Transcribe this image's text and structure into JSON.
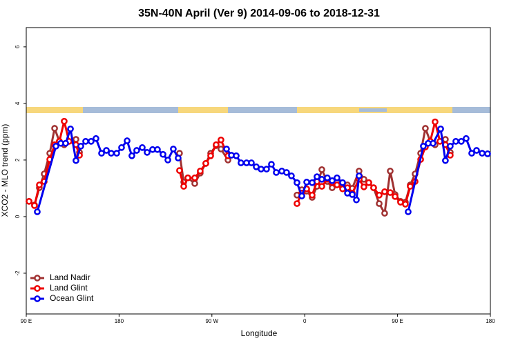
{
  "chart_data": {
    "type": "line",
    "title": "35N-40N April (Ver 9)   2014-09-06 to 2018-12-31",
    "x_label": "Longitude",
    "y_label": "XCO2 - MLO trend (ppm)",
    "xlim": [
      90,
      540
    ],
    "ylim": [
      -3.44,
      6.68
    ],
    "xticks": [
      {
        "value": 90,
        "label": "90 E"
      },
      180,
      {
        "value": 270,
        "label": "90 W"
      },
      {
        "value": 360,
        "label": "0"
      },
      {
        "value": 450,
        "label": "90 E"
      },
      {
        "value": 540,
        "label": "180"
      }
    ],
    "yticks": [
      -2,
      0,
      2,
      4,
      6
    ],
    "legend": "bottomleft",
    "series": [
      {
        "name": "Land Nadir",
        "color": "#a03232",
        "x": [
          92.7,
          98,
          102.7,
          107.4,
          112.8,
          117.5,
          122.1,
          126.8,
          138.2,
          141.6,
          null,
          238.6,
          242.7,
          246.7,
          253.4,
          258.7,
          264.1,
          268.8,
          274.1,
          278.8,
          285.6,
          null,
          352.5,
          357.2,
          361.9,
          367.2,
          371.9,
          376.6,
          381.9,
          386.6,
          391.3,
          396.7,
          401.4,
          406.1,
          412.7,
          417.4,
          422.1,
          426.8,
          432.2,
          437.5,
          442.9,
          447.6,
          452.9,
          457.6,
          462.3,
          467,
          472.4,
          477,
          481.7,
          486.4,
          496.4,
          501.1
        ],
        "values": [
          0.54,
          0.41,
          1.02,
          1.51,
          2.24,
          3.12,
          2.66,
          2.54,
          2.73,
          2.27,
          null,
          2.24,
          1.22,
          1.37,
          1.17,
          1.54,
          1.88,
          2.24,
          2.51,
          2.39,
          2.0,
          null,
          0.76,
          0.95,
          0.9,
          0.68,
          1.07,
          1.66,
          1.24,
          1.02,
          1.27,
          1.07,
          1.12,
          1.0,
          1.61,
          1.32,
          1.2,
          1.02,
          0.46,
          0.12,
          1.61,
          0.78,
          0.54,
          0.51,
          1.12,
          1.51,
          2.24,
          3.12,
          2.66,
          2.54,
          2.73,
          2.27
        ]
      },
      {
        "name": "Land Glint",
        "color": "#ee0000",
        "x": [
          92.7,
          98,
          102.7,
          107.4,
          112.8,
          117.5,
          122.1,
          126.8,
          131.5,
          138.2,
          141.6,
          null,
          238.6,
          242.7,
          246.7,
          253.4,
          258.7,
          264.1,
          268.8,
          274.1,
          278.8,
          285.6,
          null,
          352.5,
          357.2,
          361.9,
          367.2,
          371.9,
          376.6,
          381.9,
          386.6,
          391.3,
          396.7,
          401.4,
          406.1,
          412.7,
          417.4,
          422.1,
          426.8,
          432.2,
          437.5,
          442.9,
          447.6,
          452.9,
          457.6,
          462.3,
          467,
          472.4,
          477,
          481.7,
          486.4,
          491.1,
          496.4,
          501.1
        ],
        "values": [
          0.54,
          0.39,
          1.12,
          1.24,
          2.02,
          2.54,
          2.66,
          3.37,
          2.66,
          2.54,
          2.17,
          null,
          1.63,
          1.07,
          1.37,
          1.37,
          1.61,
          1.88,
          2.15,
          2.54,
          2.71,
          2.15,
          null,
          0.46,
          0.83,
          0.98,
          0.76,
          1.24,
          1.07,
          1.32,
          1.2,
          1.12,
          0.98,
          1.02,
          0.83,
          1.32,
          1.05,
          1.2,
          1.02,
          0.76,
          0.88,
          0.85,
          0.71,
          0.51,
          0.44,
          1.07,
          1.24,
          2.02,
          2.46,
          2.66,
          3.35,
          2.66,
          2.54,
          2.17
        ]
      },
      {
        "name": "Ocean Glint",
        "color": "#0000ee",
        "x": [
          100.7,
          118.8,
          123.5,
          128.2,
          132.9,
          138.2,
          142.9,
          147.6,
          152.9,
          157.6,
          163,
          167.7,
          172.4,
          177.7,
          182.4,
          187.8,
          192.4,
          197.1,
          202.5,
          207.2,
          212.5,
          217.2,
          222.6,
          227.3,
          232.6,
          237.3,
          null,
          284.2,
          288.9,
          293.6,
          298.2,
          303.6,
          308.3,
          313,
          317.7,
          323,
          327.7,
          332.4,
          337.8,
          342.4,
          347.1,
          352.5,
          357.2,
          361.9,
          367.2,
          371.9,
          376.6,
          381.9,
          386.6,
          391.3,
          396.7,
          401.4,
          406.1,
          410.1,
          412.7,
          null,
          460.3,
          475,
          479.7,
          484.4,
          491.8,
          496.4,
          501.1,
          506.5,
          511.8,
          516.5,
          521.9,
          526.6,
          532,
          537.3
        ],
        "values": [
          0.17,
          2.49,
          2.59,
          2.59,
          3.1,
          1.98,
          2.49,
          2.66,
          2.66,
          2.76,
          2.24,
          2.34,
          2.24,
          2.24,
          2.44,
          2.68,
          2.15,
          2.34,
          2.44,
          2.27,
          2.37,
          2.37,
          2.2,
          2.0,
          2.39,
          2.07,
          null,
          2.39,
          2.17,
          2.15,
          1.9,
          1.9,
          1.9,
          1.76,
          1.68,
          1.68,
          1.85,
          1.56,
          1.61,
          1.56,
          1.44,
          1.2,
          0.73,
          1.22,
          1.2,
          1.41,
          1.32,
          1.37,
          1.27,
          1.37,
          1.2,
          0.83,
          0.78,
          0.59,
          1.44,
          null,
          0.17,
          2.49,
          2.59,
          2.59,
          3.1,
          1.98,
          2.49,
          2.66,
          2.66,
          2.76,
          2.24,
          2.34,
          2.24,
          2.22
        ]
      }
    ]
  }
}
